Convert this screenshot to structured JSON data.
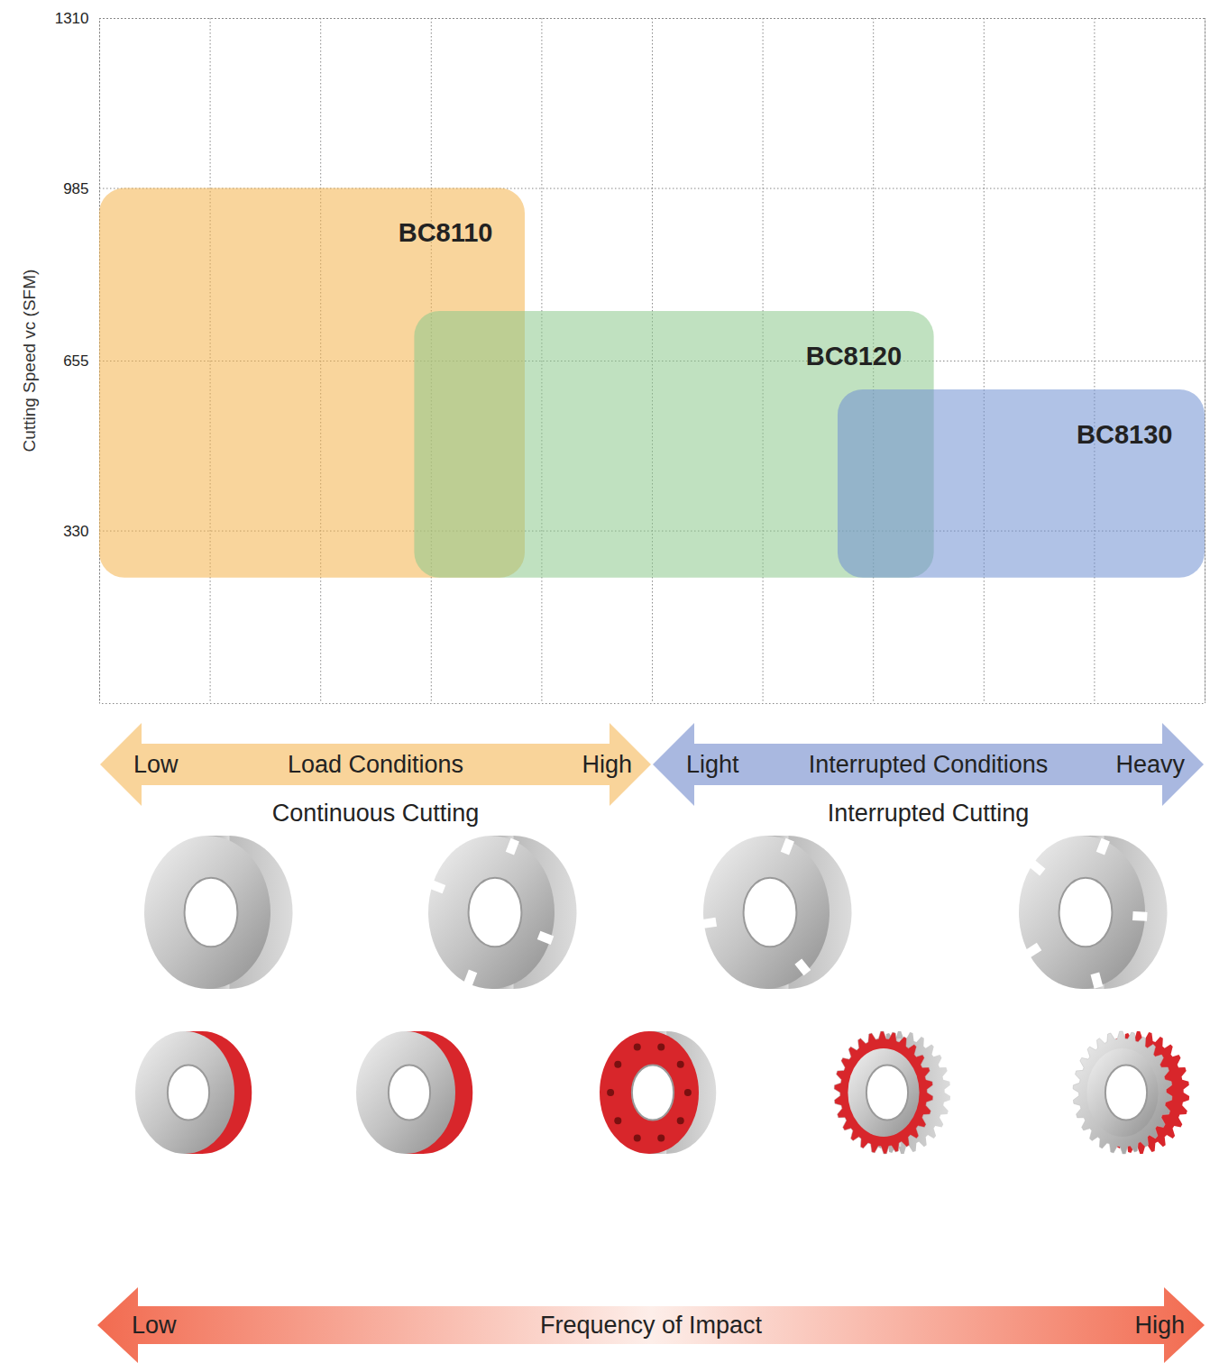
{
  "chart_data": {
    "type": "range",
    "ylabel": "Cutting Speed vc (SFM)",
    "ylim": [
      0,
      1310
    ],
    "yticks": [
      330,
      655,
      985,
      1310
    ],
    "xlim": [
      0,
      10
    ],
    "xticks": [
      0,
      1,
      2,
      3,
      4,
      5,
      6,
      7,
      8,
      9,
      10
    ],
    "grid": true,
    "tick_labels": "y",
    "series": [
      {
        "name": "BC8110",
        "color": "#f4b24a",
        "x": [
          0,
          3.85
        ],
        "y": [
          240,
          985
        ]
      },
      {
        "name": "BC8120",
        "color": "#8cc98c",
        "x": [
          2.85,
          7.55
        ],
        "y": [
          240,
          750
        ]
      },
      {
        "name": "BC8130",
        "color": "#6f8fd1",
        "x": [
          6.68,
          10
        ],
        "y": [
          240,
          600
        ]
      }
    ],
    "bands": [
      {
        "x": [
          0,
          5
        ],
        "left": "Low",
        "label": "Load Conditions",
        "right": "High",
        "caption": "Continuous Cutting",
        "color": "#f9d49a"
      },
      {
        "x": [
          5,
          10
        ],
        "left": "Light",
        "label": "Interrupted Conditions",
        "right": "Heavy",
        "caption": "Interrupted Cutting",
        "color": "#a9b8e0"
      }
    ],
    "impact_scale": {
      "x": [
        0,
        10
      ],
      "left": "Low",
      "label": "Frequency of Impact",
      "right": "High",
      "color": "#f26b50"
    }
  }
}
